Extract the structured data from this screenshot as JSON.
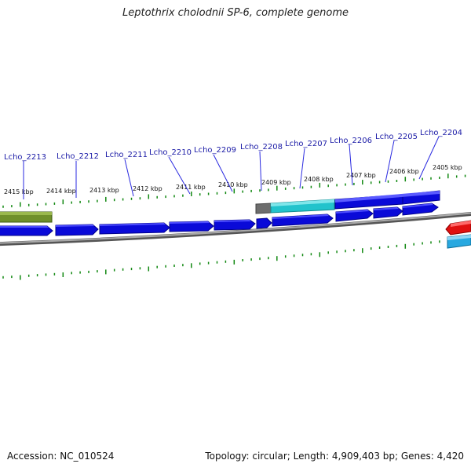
{
  "title": "Leptothrix cholodnii SP-6, complete genome",
  "footer": {
    "accession": "Accession: NC_010524",
    "summary": "Topology: circular; Length: 4,909,403 bp; Genes: 4,420"
  },
  "colors": {
    "background": "#ffffff",
    "gene_label": "#1a1aa6",
    "leader_line": "#2a2ae0",
    "tick": "#118811",
    "backbone": "#888888",
    "gene_blue": "#0a0ad8",
    "gene_cyan": "#22c3cc",
    "gene_gray": "#6d6d6d",
    "gene_olive": "#6f8f2a",
    "gene_red": "#e01010",
    "gene_light_blue": "#28a8e0"
  },
  "map": {
    "kbp_labels": [
      "2415 kbp",
      "2414 kbp",
      "2413 kbp",
      "2412 kbp",
      "2411 kbp",
      "2410 kbp",
      "2409 kbp",
      "2408 kbp",
      "2407 kbp",
      "2406 kbp",
      "2405 kbp"
    ],
    "gene_labels": [
      "Lcho_2213",
      "Lcho_2212",
      "Lcho_2211",
      "Lcho_2210",
      "Lcho_2209",
      "Lcho_2208",
      "Lcho_2207",
      "Lcho_2206",
      "Lcho_2205",
      "Lcho_2204"
    ],
    "gene_features": [
      "olive",
      "blue",
      "blue",
      "blue",
      "blue",
      "blue",
      "blue",
      "blue",
      "blue",
      "blue",
      "blue",
      "gray",
      "cyan",
      "blue",
      "blue",
      "red",
      "light-blue"
    ]
  }
}
